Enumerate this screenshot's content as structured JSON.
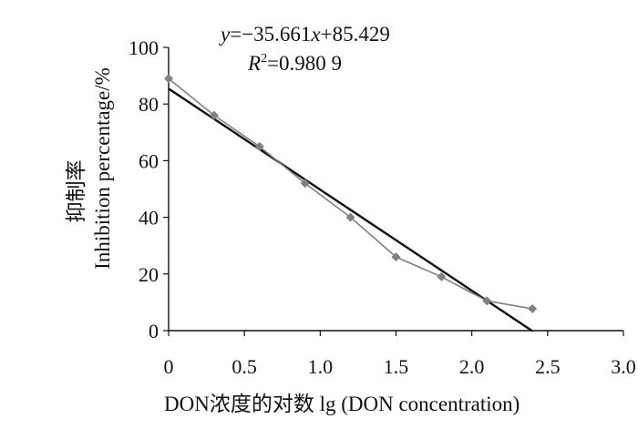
{
  "chart_data": {
    "type": "scatter",
    "x": [
      0,
      0.3,
      0.6,
      0.9,
      1.2,
      1.5,
      1.8,
      2.1,
      2.4
    ],
    "series": [
      {
        "values": [
          89,
          76,
          65,
          52,
          40,
          26,
          19,
          10.5,
          7.7
        ],
        "color": "#808080",
        "marker": "diamond"
      }
    ],
    "trendline": {
      "slope": -35.661,
      "intercept": 85.429,
      "color": "#111111",
      "x_range": [
        0,
        2.4
      ]
    },
    "annotations": {
      "equation_prefix": "y",
      "equation_rest": "=−35.661",
      "equation_x": "x",
      "equation_tail": "+85.429",
      "r2_label": "R",
      "r2_sup": "2",
      "r2_value": "=0.980 9"
    },
    "ylabel_cn": "抑制率",
    "ylabel_en": "Inhibition percentage/%",
    "xlabel": "DON浓度的对数  lg (DON concentration)",
    "xticks": [
      "0",
      "0.5",
      "1.0",
      "1.5",
      "2.0",
      "2.5",
      "3.0"
    ],
    "yticks": [
      "0",
      "20",
      "40",
      "60",
      "80",
      "100"
    ],
    "xlim": [
      0,
      3
    ],
    "ylim": [
      0,
      100
    ],
    "grid": false
  }
}
